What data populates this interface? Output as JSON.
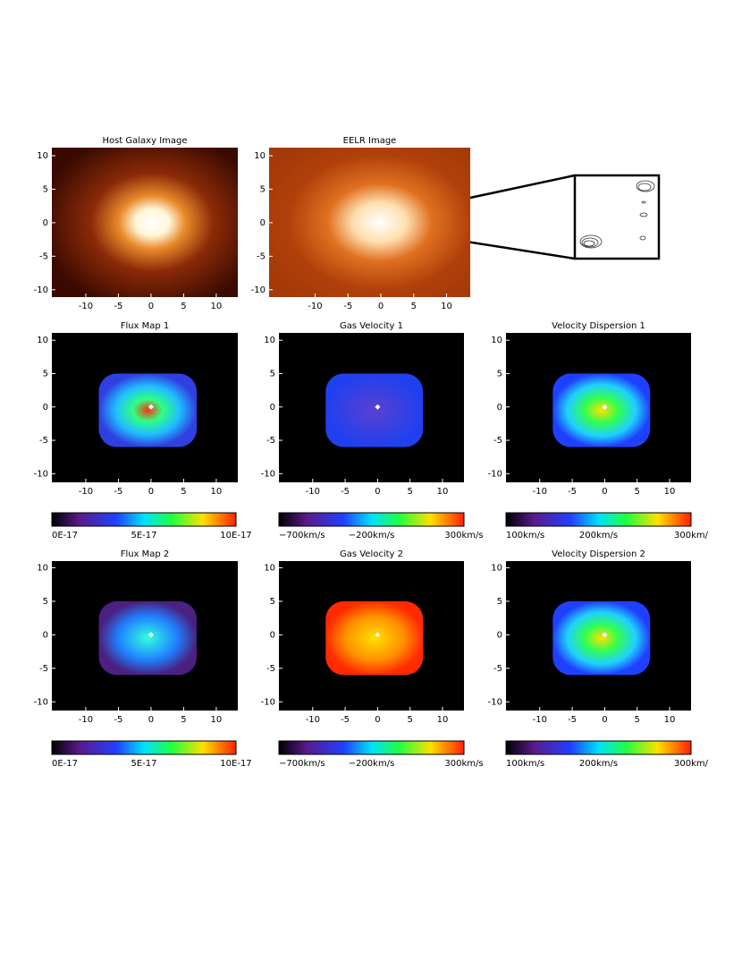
{
  "panels": [
    {
      "title": "Host Galaxy Image",
      "xlim": [
        -15.2,
        13.3
      ],
      "ylim": [
        -11.1,
        11.2
      ],
      "xticks": [
        -10,
        -5,
        0,
        5,
        10
      ],
      "yticks": [
        -10,
        -5,
        0,
        5,
        10
      ]
    },
    {
      "title": "EELR Image",
      "xlim": [
        -17.0,
        13.6
      ],
      "ylim": [
        -11.1,
        11.2
      ],
      "xticks": [
        -10,
        -5,
        0,
        5,
        10
      ],
      "yticks": [
        -10,
        -5,
        0,
        5,
        10
      ]
    },
    {
      "title": "Flux Map 1",
      "xlim": [
        -15.2,
        13.3
      ],
      "ylim": [
        -11.3,
        11.1
      ],
      "xticks": [
        -10,
        -5,
        0,
        5,
        10
      ],
      "yticks": [
        -10,
        -5,
        0,
        5,
        10
      ]
    },
    {
      "title": "Gas Velocity 1",
      "xlim": [
        -15.2,
        13.3
      ],
      "ylim": [
        -11.3,
        11.1
      ],
      "xticks": [
        -10,
        -5,
        0,
        5,
        10
      ],
      "yticks": [
        -10,
        -5,
        0,
        5,
        10
      ]
    },
    {
      "title": "Velocity Dispersion 1",
      "xlim": [
        -15.2,
        13.3
      ],
      "ylim": [
        -11.3,
        11.1
      ],
      "xticks": [
        -10,
        -5,
        0,
        5,
        10
      ],
      "yticks": [
        -10,
        -5,
        0,
        5,
        10
      ]
    },
    {
      "title": "Flux Map 2",
      "xlim": [
        -15.2,
        13.3
      ],
      "ylim": [
        -11.3,
        11.0
      ],
      "xticks": [
        -10,
        -5,
        0,
        5,
        10
      ],
      "yticks": [
        -10,
        -5,
        0,
        5,
        10
      ]
    },
    {
      "title": "Gas Velocity 2",
      "xlim": [
        -15.2,
        13.3
      ],
      "ylim": [
        -11.3,
        11.0
      ],
      "xticks": [
        -10,
        -5,
        0,
        5,
        10
      ],
      "yticks": [
        -10,
        -5,
        0,
        5,
        10
      ]
    },
    {
      "title": "Velocity Dispersion 2",
      "xlim": [
        -15.2,
        13.3
      ],
      "ylim": [
        -11.3,
        11.0
      ],
      "xticks": [
        -10,
        -5,
        0,
        5,
        10
      ],
      "yticks": [
        -10,
        -5,
        0,
        5,
        10
      ]
    }
  ],
  "colorbars": [
    {
      "labels": [
        "0E-17",
        "5E-17",
        "10E-17"
      ]
    },
    {
      "labels": [
        "−700km/s",
        "−200km/s",
        "300km/s"
      ]
    },
    {
      "labels": [
        "100km/s",
        "200km/s",
        "300km/"
      ]
    },
    {
      "labels": [
        "0E-17",
        "5E-17",
        "10E-17"
      ]
    },
    {
      "labels": [
        "−700km/s",
        "−200km/s",
        "300km/s"
      ]
    },
    {
      "labels": [
        "100km/s",
        "200km/s",
        "300km/"
      ]
    }
  ]
}
